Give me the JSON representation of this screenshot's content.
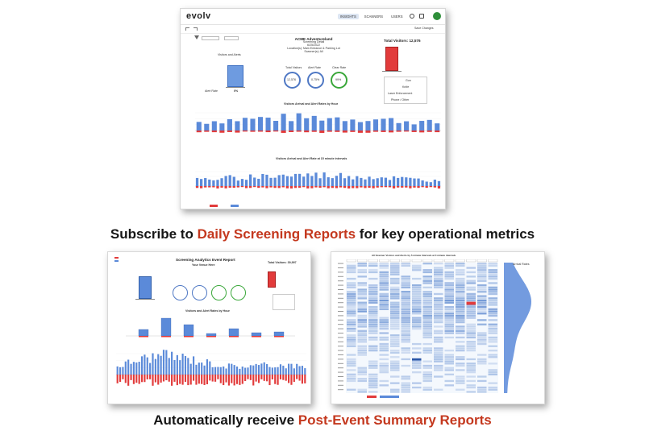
{
  "caption_top": {
    "prefix": "Subscribe to ",
    "highlight": "Daily Screening Reports",
    "suffix": " for key operational metrics"
  },
  "caption_bottom": {
    "prefix": "Automatically receive ",
    "highlight": "Post-Event Summary Reports"
  },
  "colors": {
    "highlight": "#c4381e",
    "bar_blue": "#5b8ad9",
    "bar_red": "#e23b3b",
    "kpi_blue": "#4f78c4",
    "kpi_green": "#3aa73a"
  },
  "daily_report": {
    "brand": "evolv",
    "nav": [
      "INSIGHTS",
      "SCANNERS",
      "USERS"
    ],
    "toolbar_label": "Save Changes",
    "title_lines": [
      "ACME Adventureland",
      "Screening Detail",
      "6/25/2022",
      "Location(s): Main Entrance & Parking Lot",
      "Scanner(s): All"
    ],
    "left_panel_title": "Visitors and Alerts",
    "left_panel_foot": "Alert Rate",
    "left_panel_value": "0%",
    "kpis": [
      {
        "label": "Total Visitors",
        "value": "12,576"
      },
      {
        "label": "Alert Rate",
        "value": "0.75%"
      },
      {
        "label": "Clear Rate",
        "value": "99%"
      }
    ],
    "total_visitors_label": "Total Visitors: 12,576",
    "legend_items": [
      "Gun",
      "Knife",
      "Laser Enforcement",
      "Phone / Other"
    ],
    "chart1_title": "Visitors Arrival and Alert Rates by Hour",
    "chart2_title": "Visitors Arrival and Alert Rate at 15 minute intervals"
  },
  "post_event_report": {
    "title": "Screening Analytics Event Report",
    "subtitle": "Your Venue Here",
    "total_visitors_label": "Total Visitors: 39,997",
    "chart1_title": "Visitors and Alert Rates by Hour"
  },
  "heatmap_report": {
    "title": "All Scanner Visitors and Alerts by 5 minute Intervals at 3 minute intervals",
    "side_label": "Arrival Rates"
  }
}
